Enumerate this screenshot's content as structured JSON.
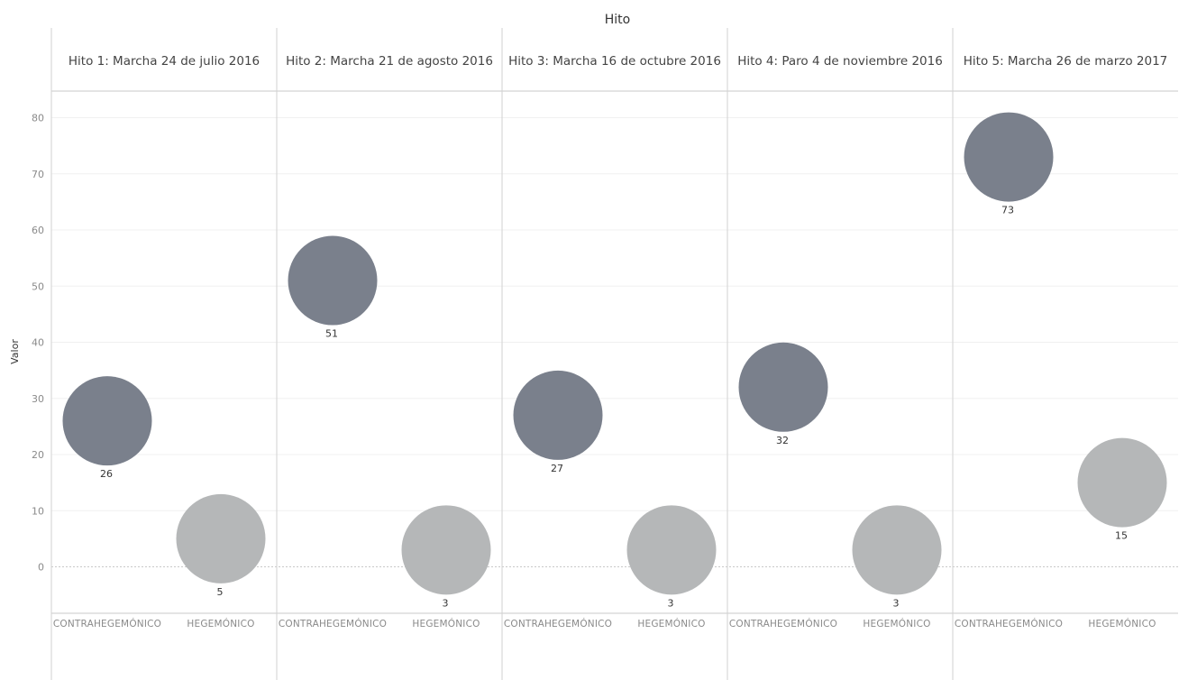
{
  "chart_data": {
    "type": "scatter",
    "title": "Hito",
    "ylabel": "Valor",
    "ylim": [
      -8,
      85
    ],
    "yticks": [
      0,
      10,
      20,
      30,
      40,
      50,
      60,
      70,
      80
    ],
    "ytick_labels": [
      "0",
      "10",
      "20",
      "30",
      "40",
      "50",
      "60",
      "70",
      "80"
    ],
    "categories": [
      "CONTRAHEGEMÓNICO",
      "HEGEMÓNICO"
    ],
    "grid": true,
    "colors": {
      "CONTRAHEGEMÓNICO": "#7a808c",
      "HEGEMÓNICO": "#b5b7b8"
    },
    "panels": [
      {
        "name": "Hito 1: Marcha 24 de julio 2016",
        "values": [
          26,
          5
        ],
        "labels": [
          "26",
          "5"
        ]
      },
      {
        "name": "Hito 2: Marcha 21 de agosto 2016",
        "values": [
          51,
          3
        ],
        "labels": [
          "51",
          "3"
        ]
      },
      {
        "name": "Hito 3: Marcha 16 de octubre 2016",
        "values": [
          27,
          3
        ],
        "labels": [
          "27",
          "3"
        ]
      },
      {
        "name": "Hito 4: Paro 4 de noviembre 2016",
        "values": [
          32,
          3
        ],
        "labels": [
          "32",
          "3"
        ]
      },
      {
        "name": "Hito 5: Marcha 26 de marzo 2017",
        "values": [
          73,
          15
        ],
        "labels": [
          "73",
          "15"
        ]
      }
    ]
  }
}
